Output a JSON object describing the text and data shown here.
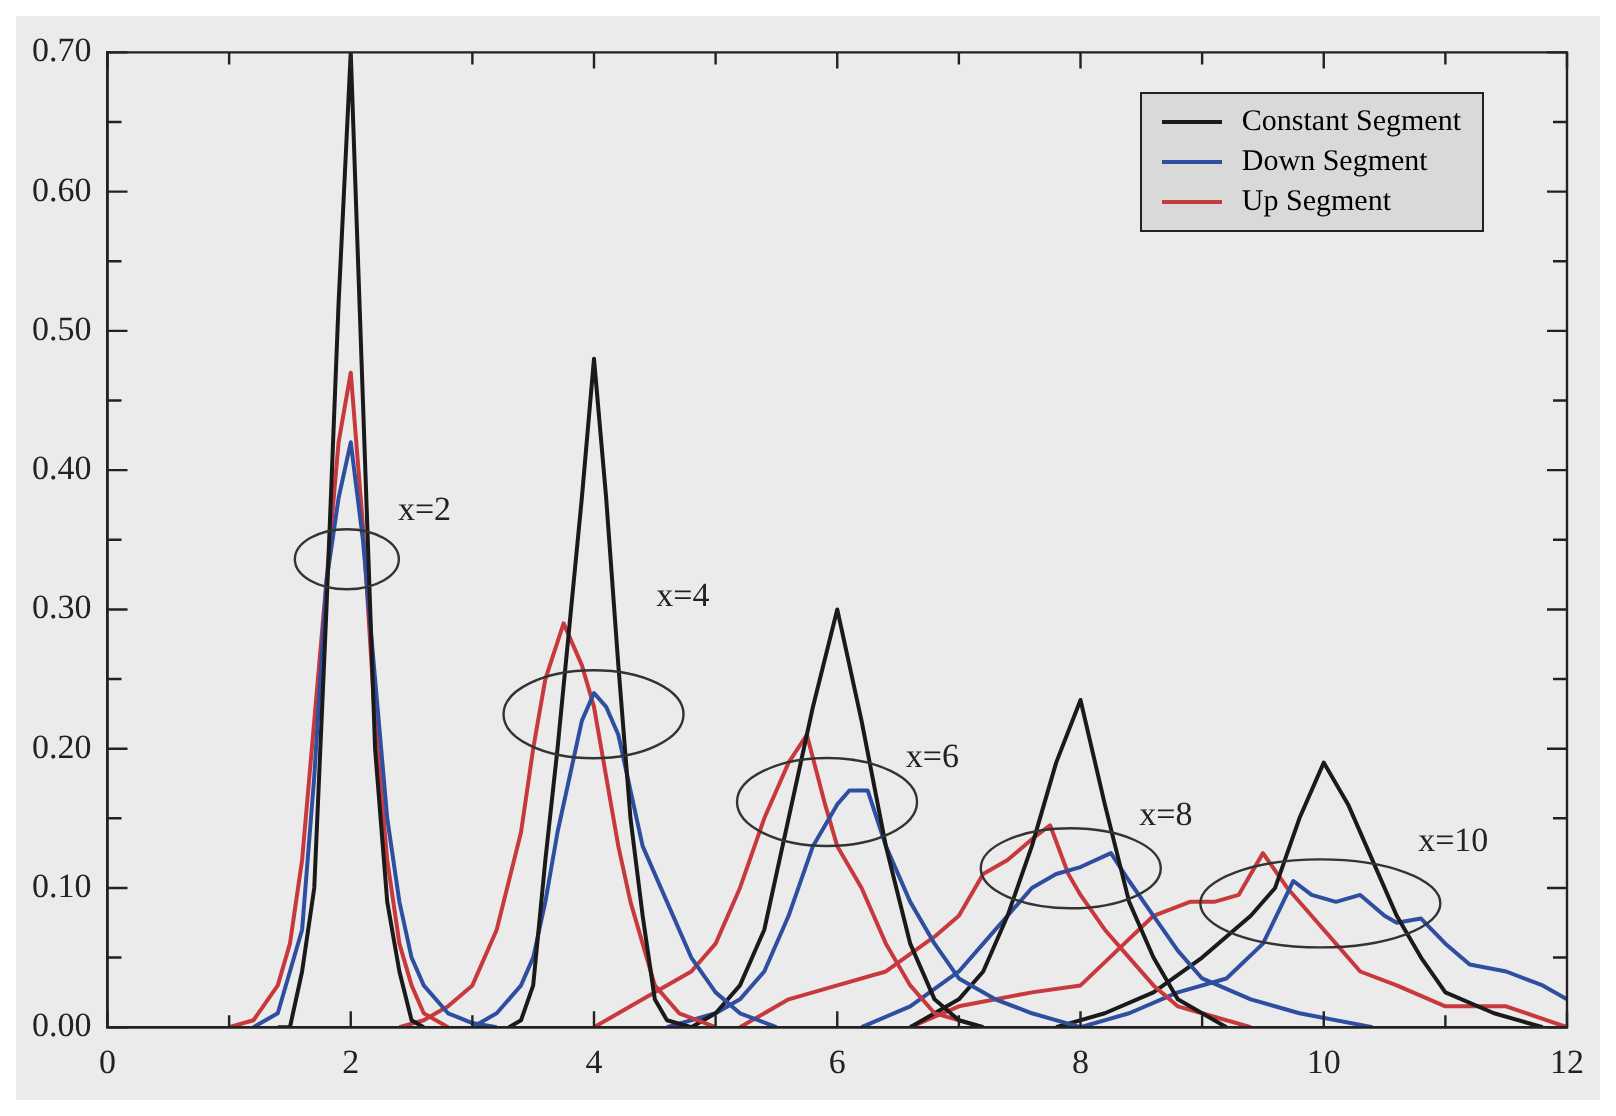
{
  "chart_data": {
    "type": "line",
    "xlim": [
      0,
      12
    ],
    "ylim": [
      0,
      0.7
    ],
    "xticks": [
      0,
      {
        "value": 1,
        "label": null
      },
      2,
      {
        "value": 3,
        "label": null
      },
      4,
      {
        "value": 5,
        "label": null
      },
      6,
      {
        "value": 7,
        "label": null
      },
      8,
      {
        "value": 9,
        "label": null
      },
      10,
      {
        "value": 11,
        "label": null
      },
      12
    ],
    "yticks": [
      {
        "value": 0,
        "label": "0.00"
      },
      {
        "value": 0.05,
        "label": null
      },
      {
        "value": 0.1,
        "label": "0.10"
      },
      {
        "value": 0.15,
        "label": null
      },
      {
        "value": 0.2,
        "label": "0.20"
      },
      {
        "value": 0.25,
        "label": null
      },
      {
        "value": 0.3,
        "label": "0.30"
      },
      {
        "value": 0.35,
        "label": null
      },
      {
        "value": 0.4,
        "label": "0.40"
      },
      {
        "value": 0.45,
        "label": null
      },
      {
        "value": 0.5,
        "label": "0.50"
      },
      {
        "value": 0.55,
        "label": null
      },
      {
        "value": 0.6,
        "label": "0.60"
      },
      {
        "value": 0.65,
        "label": null
      },
      {
        "value": 0.7,
        "label": "0.70"
      }
    ],
    "grid": false,
    "legend": "top right",
    "marker": "none",
    "line_style": "solid",
    "annotations": [
      "x=2",
      "x=4",
      "x=6",
      "x=8",
      "x=10"
    ],
    "series": [
      {
        "name": "Constant Segment",
        "color": "#1a1a1a",
        "x": [
          1.4,
          1.5,
          1.6,
          1.7,
          1.8,
          1.9,
          2.0,
          2.1,
          2.2,
          2.3,
          2.4,
          2.5,
          2.6
        ],
        "values": [
          0,
          0,
          0.04,
          0.1,
          0.3,
          0.52,
          0.7,
          0.45,
          0.2,
          0.09,
          0.04,
          0.005,
          0
        ]
      },
      {
        "name": "Down Segment",
        "color": "#2e4fa0",
        "x": [
          1.2,
          1.4,
          1.6,
          1.7,
          1.8,
          1.9,
          2.0,
          2.1,
          2.2,
          2.3,
          2.4,
          2.5,
          2.6,
          2.8,
          3.0,
          3.2
        ],
        "values": [
          0,
          0.01,
          0.07,
          0.18,
          0.32,
          0.38,
          0.42,
          0.35,
          0.25,
          0.15,
          0.09,
          0.05,
          0.03,
          0.01,
          0.003,
          0
        ]
      },
      {
        "name": "Up Segment",
        "color": "#c8393d",
        "x": [
          1.0,
          1.2,
          1.4,
          1.5,
          1.6,
          1.7,
          1.8,
          1.9,
          2.0,
          2.1,
          2.2,
          2.3,
          2.4,
          2.5,
          2.6,
          2.8
        ],
        "values": [
          0,
          0.005,
          0.03,
          0.06,
          0.12,
          0.22,
          0.32,
          0.42,
          0.47,
          0.36,
          0.22,
          0.12,
          0.06,
          0.03,
          0.01,
          0
        ]
      },
      {
        "color": "#1a1a1a",
        "x": [
          3.3,
          3.4,
          3.5,
          3.6,
          3.7,
          3.8,
          3.9,
          4.0,
          4.1,
          4.2,
          4.3,
          4.4,
          4.5,
          4.6,
          4.8
        ],
        "values": [
          0,
          0.005,
          0.03,
          0.12,
          0.2,
          0.29,
          0.38,
          0.48,
          0.38,
          0.26,
          0.15,
          0.08,
          0.02,
          0.005,
          0
        ]
      },
      {
        "color": "#2e4fa0",
        "x": [
          3.0,
          3.2,
          3.4,
          3.5,
          3.6,
          3.7,
          3.8,
          3.9,
          4.0,
          4.1,
          4.2,
          4.3,
          4.4,
          4.6,
          4.8,
          5.0,
          5.2,
          5.5
        ],
        "values": [
          0,
          0.01,
          0.03,
          0.05,
          0.09,
          0.14,
          0.18,
          0.22,
          0.24,
          0.23,
          0.21,
          0.17,
          0.13,
          0.09,
          0.05,
          0.025,
          0.01,
          0
        ]
      },
      {
        "color": "#c8393d",
        "x": [
          2.4,
          2.6,
          2.8,
          3.0,
          3.2,
          3.4,
          3.5,
          3.6,
          3.75,
          3.9,
          4.0,
          4.1,
          4.2,
          4.3,
          4.5,
          4.7,
          5.0
        ],
        "values": [
          0,
          0.005,
          0.015,
          0.03,
          0.07,
          0.14,
          0.2,
          0.25,
          0.29,
          0.26,
          0.23,
          0.18,
          0.13,
          0.09,
          0.03,
          0.01,
          0
        ]
      },
      {
        "color": "#1a1a1a",
        "x": [
          4.8,
          5.0,
          5.2,
          5.4,
          5.6,
          5.8,
          6.0,
          6.2,
          6.4,
          6.6,
          6.8,
          7.0,
          7.2
        ],
        "values": [
          0,
          0.01,
          0.03,
          0.07,
          0.15,
          0.23,
          0.3,
          0.22,
          0.13,
          0.06,
          0.02,
          0.005,
          0
        ]
      },
      {
        "color": "#2e4fa0",
        "x": [
          4.6,
          5.0,
          5.2,
          5.4,
          5.6,
          5.8,
          6.0,
          6.1,
          6.25,
          6.4,
          6.6,
          6.8,
          7.0,
          7.3,
          7.6,
          8.0
        ],
        "values": [
          0,
          0.01,
          0.02,
          0.04,
          0.08,
          0.13,
          0.16,
          0.17,
          0.17,
          0.13,
          0.09,
          0.06,
          0.035,
          0.02,
          0.01,
          0
        ]
      },
      {
        "color": "#c8393d",
        "x": [
          4.0,
          4.4,
          4.8,
          5.0,
          5.2,
          5.4,
          5.6,
          5.75,
          5.9,
          6.0,
          6.2,
          6.4,
          6.6,
          6.8,
          7.2
        ],
        "values": [
          0,
          0.02,
          0.04,
          0.06,
          0.1,
          0.15,
          0.19,
          0.21,
          0.16,
          0.13,
          0.1,
          0.06,
          0.03,
          0.01,
          0
        ]
      },
      {
        "color": "#1a1a1a",
        "x": [
          6.6,
          7.0,
          7.2,
          7.4,
          7.6,
          7.8,
          8.0,
          8.2,
          8.4,
          8.6,
          8.8,
          9.0,
          9.2
        ],
        "values": [
          0,
          0.02,
          0.04,
          0.08,
          0.13,
          0.19,
          0.235,
          0.16,
          0.09,
          0.05,
          0.02,
          0.01,
          0
        ]
      },
      {
        "color": "#2e4fa0",
        "x": [
          6.2,
          6.6,
          7.0,
          7.2,
          7.4,
          7.6,
          7.8,
          8.0,
          8.25,
          8.4,
          8.6,
          8.8,
          9.0,
          9.4,
          9.8,
          10.4
        ],
        "values": [
          0,
          0.015,
          0.04,
          0.06,
          0.08,
          0.1,
          0.11,
          0.115,
          0.125,
          0.105,
          0.08,
          0.055,
          0.035,
          0.02,
          0.01,
          0
        ]
      },
      {
        "color": "#c8393d",
        "x": [
          5.2,
          5.6,
          6.0,
          6.4,
          6.8,
          7.0,
          7.2,
          7.4,
          7.6,
          7.75,
          7.9,
          8.0,
          8.2,
          8.4,
          8.6,
          8.8,
          9.0,
          9.4
        ],
        "values": [
          0,
          0.02,
          0.03,
          0.04,
          0.065,
          0.08,
          0.11,
          0.12,
          0.135,
          0.145,
          0.11,
          0.095,
          0.07,
          0.05,
          0.03,
          0.015,
          0.01,
          0
        ]
      },
      {
        "color": "#1a1a1a",
        "x": [
          7.8,
          8.2,
          8.6,
          9.0,
          9.4,
          9.6,
          9.8,
          10.0,
          10.2,
          10.4,
          10.6,
          10.8,
          11.0,
          11.4,
          11.8
        ],
        "values": [
          0,
          0.01,
          0.025,
          0.05,
          0.08,
          0.1,
          0.15,
          0.19,
          0.16,
          0.12,
          0.08,
          0.05,
          0.025,
          0.01,
          0
        ]
      },
      {
        "color": "#2e4fa0",
        "x": [
          8.0,
          8.4,
          8.8,
          9.2,
          9.5,
          9.75,
          9.9,
          10.1,
          10.3,
          10.5,
          10.6,
          10.8,
          11.0,
          11.2,
          11.5,
          11.8,
          12.0
        ],
        "values": [
          0,
          0.01,
          0.025,
          0.035,
          0.06,
          0.105,
          0.095,
          0.09,
          0.095,
          0.08,
          0.075,
          0.078,
          0.06,
          0.045,
          0.04,
          0.03,
          0.02
        ]
      },
      {
        "color": "#c8393d",
        "x": [
          6.6,
          7.0,
          7.6,
          8.0,
          8.3,
          8.6,
          8.9,
          9.1,
          9.3,
          9.5,
          9.7,
          9.9,
          10.1,
          10.3,
          10.6,
          11.0,
          11.5,
          12.0
        ],
        "values": [
          0,
          0.015,
          0.025,
          0.03,
          0.055,
          0.08,
          0.09,
          0.09,
          0.095,
          0.125,
          0.1,
          0.08,
          0.06,
          0.04,
          0.03,
          0.015,
          0.015,
          0
        ]
      }
    ]
  }
}
